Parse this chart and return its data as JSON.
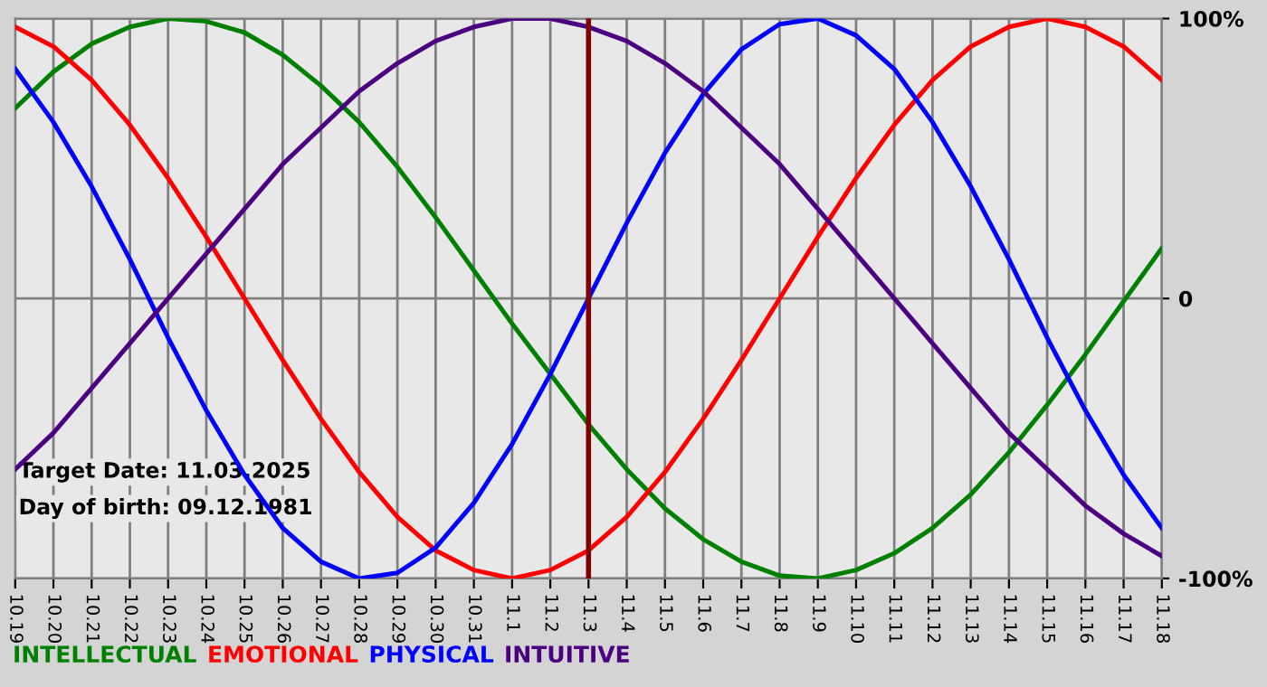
{
  "chart_data": {
    "type": "line",
    "categories": [
      "10.19",
      "10.20",
      "10.21",
      "10.22",
      "10.23",
      "10.24",
      "10.25",
      "10.26",
      "10.27",
      "10.28",
      "10.29",
      "10.30",
      "10.31",
      "11.1",
      "11.2",
      "11.3",
      "11.4",
      "11.5",
      "11.6",
      "11.7",
      "11.8",
      "11.9",
      "11.10",
      "11.11",
      "11.12",
      "11.13",
      "11.14",
      "11.15",
      "11.16",
      "11.17",
      "11.18"
    ],
    "series": [
      {
        "name": "INTELLECTUAL",
        "color": "#008000",
        "values": [
          68,
          81,
          91,
          97,
          100,
          99,
          95,
          87,
          76,
          63,
          47,
          29,
          10,
          -9,
          -27,
          -45,
          -61,
          -75,
          -86,
          -94,
          -99,
          -100,
          -97,
          -91,
          -82,
          -70,
          -55,
          -38,
          -20,
          -1,
          18
        ]
      },
      {
        "name": "EMOTIONAL",
        "color": "#ff0000",
        "values": [
          97,
          90,
          78,
          62,
          43,
          22,
          0,
          -22,
          -43,
          -62,
          -78,
          -90,
          -97,
          -100,
          -97,
          -90,
          -78,
          -62,
          -43,
          -22,
          0,
          22,
          43,
          62,
          78,
          90,
          97,
          100,
          97,
          90,
          78
        ]
      },
      {
        "name": "PHYSICAL",
        "color": "#0000ff",
        "values": [
          82,
          63,
          40,
          14,
          -14,
          -40,
          -63,
          -82,
          -94,
          -100,
          -98,
          -89,
          -73,
          -52,
          -27,
          0,
          27,
          52,
          73,
          89,
          98,
          100,
          94,
          82,
          63,
          40,
          14,
          -14,
          -40,
          -63,
          -82
        ]
      },
      {
        "name": "INTUITIVE",
        "color": "#4b0082",
        "values": [
          -61,
          -48,
          -32,
          -16,
          0,
          16,
          32,
          48,
          61,
          74,
          84,
          92,
          97,
          100,
          100,
          97,
          92,
          84,
          74,
          61,
          48,
          32,
          16,
          0,
          -16,
          -32,
          -48,
          -61,
          -74,
          -84,
          -92
        ]
      }
    ],
    "ylim": [
      -100,
      100
    ],
    "yticks": [
      {
        "value": 100,
        "label": "100%"
      },
      0,
      {
        "value": -100,
        "label": "-100%"
      }
    ],
    "grid": true,
    "legend": "bottom left",
    "marker": "none",
    "line_style": "solid",
    "ref_lines": [
      {
        "axis": "x",
        "value": "11.3",
        "color": "#800000"
      }
    ],
    "annotations": [
      "Target Date: 11.03.2025",
      "Day of birth: 09.12.1981"
    ]
  }
}
